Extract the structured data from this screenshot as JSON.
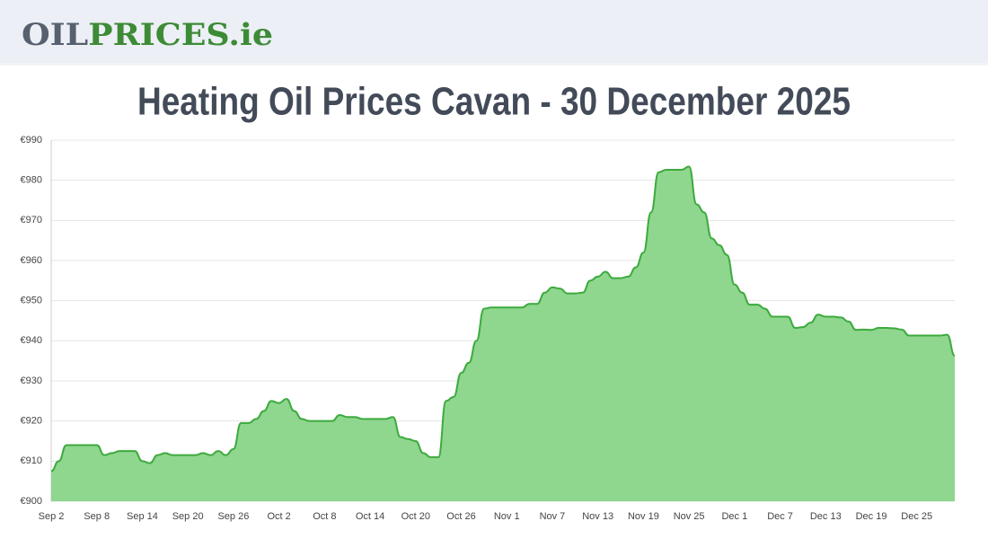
{
  "header": {
    "logo": {
      "part1": "OIL",
      "part2": "PRICES.ie"
    }
  },
  "chart_data": {
    "type": "area",
    "title": "Heating Oil Prices Cavan - 30 December 2025",
    "categories": [
      "Sep 2",
      null,
      null,
      null,
      null,
      null,
      "Sep 8",
      null,
      null,
      null,
      null,
      null,
      "Sep 14",
      null,
      null,
      null,
      null,
      null,
      "Sep 20",
      null,
      null,
      null,
      null,
      null,
      "Sep 26",
      null,
      null,
      null,
      null,
      null,
      "Oct 2",
      null,
      null,
      null,
      null,
      null,
      "Oct 8",
      null,
      null,
      null,
      null,
      null,
      "Oct 14",
      null,
      null,
      null,
      null,
      null,
      "Oct 20",
      null,
      null,
      null,
      null,
      null,
      "Oct 26",
      null,
      null,
      null,
      null,
      null,
      "Nov 1",
      null,
      null,
      null,
      null,
      null,
      "Nov 7",
      null,
      null,
      null,
      null,
      null,
      "Nov 13",
      null,
      null,
      null,
      null,
      null,
      "Nov 19",
      null,
      null,
      null,
      null,
      null,
      "Nov 25",
      null,
      null,
      null,
      null,
      null,
      "Dec 1",
      null,
      null,
      null,
      null,
      null,
      "Dec 7",
      null,
      null,
      null,
      null,
      null,
      "Dec 13",
      null,
      null,
      null,
      null,
      null,
      "Dec 19",
      null,
      null,
      null,
      null,
      null,
      "Dec 25",
      null,
      null,
      null,
      null,
      null
    ],
    "values": [
      907.5,
      910,
      914,
      914,
      914,
      914,
      914,
      911.5,
      912,
      912.5,
      912.5,
      912.5,
      910,
      909.5,
      911.5,
      912,
      911.5,
      911.5,
      911.5,
      911.5,
      912,
      911.5,
      912.5,
      911.5,
      913,
      919.5,
      919.5,
      920.5,
      922.5,
      925,
      924.5,
      925.5,
      922.5,
      920.5,
      920,
      920,
      920,
      920,
      921.5,
      921,
      921,
      920.5,
      920.5,
      920.5,
      920.5,
      921,
      916,
      915.5,
      915,
      912,
      911,
      911,
      925,
      926,
      932,
      934.5,
      940,
      948,
      948.3,
      948.3,
      948.3,
      948.3,
      948.3,
      949.2,
      949.2,
      952,
      953.3,
      953,
      951.8,
      951.8,
      952,
      955,
      956,
      957.2,
      955.6,
      955.6,
      956,
      958.3,
      962,
      972,
      982,
      982.6,
      982.6,
      982.6,
      983.4,
      974,
      972,
      965.5,
      963.8,
      961.4,
      954,
      952,
      949,
      949,
      948,
      946,
      946,
      946,
      943.2,
      943.4,
      944.5,
      946.5,
      946,
      946,
      945.8,
      944.8,
      942.7,
      942.8,
      942.7,
      943.2,
      943.2,
      943.1,
      942.8,
      941.3,
      941.3,
      941.3,
      941.3,
      941.3,
      941.5,
      936.3
    ],
    "color": "#3daa3d",
    "fill": "#8fd68f",
    "ylim": [
      900,
      990
    ],
    "yticks": [
      {
        "value": 900,
        "label": "€900"
      },
      {
        "value": 910,
        "label": "€910"
      },
      {
        "value": 920,
        "label": "€920"
      },
      {
        "value": 930,
        "label": "€930"
      },
      {
        "value": 940,
        "label": "€940"
      },
      {
        "value": 950,
        "label": "€950"
      },
      {
        "value": 960,
        "label": "€960"
      },
      {
        "value": 970,
        "label": "€970"
      },
      {
        "value": 980,
        "label": "€980"
      },
      {
        "value": 990,
        "label": "€990"
      }
    ],
    "grid": true
  }
}
